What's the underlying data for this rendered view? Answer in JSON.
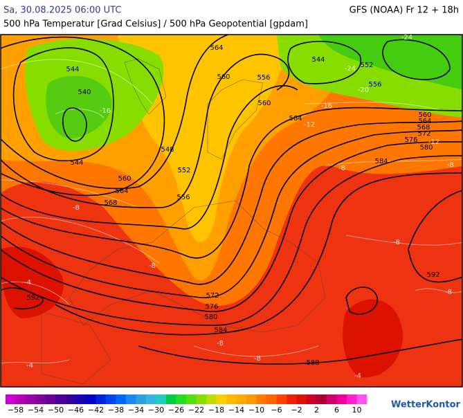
{
  "header": {
    "left": "Sa, 30.08.2025 06:00 UTC",
    "right": "GFS (NOAA) Fr 12 + 18h",
    "subtitle": "500 hPa Temperatur [Grad Celsius] / 500 hPa Geopotential [gpdam]"
  },
  "map": {
    "geopotential_labels": [
      "564",
      "544",
      "540",
      "560",
      "556",
      "544",
      "552",
      "556",
      "560",
      "564",
      "560",
      "564",
      "568",
      "572",
      "576",
      "580",
      "548",
      "544",
      "552",
      "584",
      "560",
      "564",
      "568",
      "556",
      "592",
      "592",
      "572",
      "576",
      "580",
      "584",
      "588"
    ],
    "temperature_labels": [
      "-24",
      "-24",
      "-20",
      "-16",
      "-16",
      "-12",
      "-12",
      "-8",
      "-8",
      "-8",
      "-8",
      "-8",
      "-8",
      "-4",
      "-8",
      "-8",
      "-4",
      "-4"
    ]
  },
  "colorbar": {
    "colors": [
      "#cc00cc",
      "#b300b3",
      "#9900a6",
      "#800099",
      "#660099",
      "#4d0099",
      "#330099",
      "#1a00b3",
      "#0000cc",
      "#0022dd",
      "#0044ee",
      "#0066ff",
      "#1a88ee",
      "#2aa0e0",
      "#33b5dd",
      "#22ccbb",
      "#00cc44",
      "#22dd22",
      "#55dd11",
      "#88dd00",
      "#bbdd00",
      "#ffcc00",
      "#ffbb00",
      "#ffaa00",
      "#ff9900",
      "#ff7a00",
      "#ff6600",
      "#ff4400",
      "#ee2200",
      "#dd1100",
      "#cc0022",
      "#aa0033",
      "#cc0066",
      "#ee0099",
      "#ff22cc",
      "#ff55ee"
    ],
    "labels": [
      "−58",
      "−54",
      "−50",
      "−46",
      "−42",
      "−38",
      "−34",
      "−30",
      "−26",
      "−22",
      "−18",
      "−14",
      "−10",
      "−6",
      "−2",
      "2",
      "6",
      "10"
    ]
  },
  "logo": "WetterKontor"
}
